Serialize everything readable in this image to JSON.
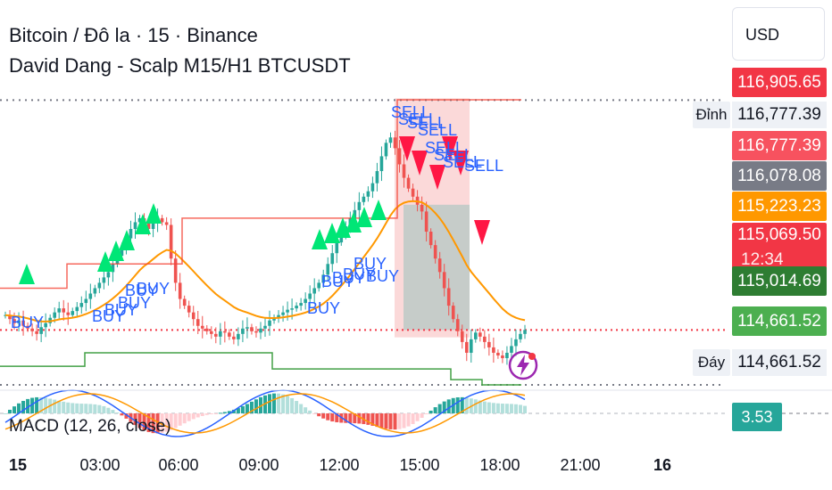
{
  "header": {
    "title": "Bitcoin / Đô la · 15 · Binance",
    "indicator": "David Dang - Scalp M15/H1 BTCUSDT"
  },
  "currency": "USD",
  "colors": {
    "up": "#26a69a",
    "down": "#ef5350",
    "ema": "#ff9800",
    "resistance": "#f44336",
    "support": "#43a047",
    "buy_marker": "#00e676",
    "sell_marker": "#ff1744",
    "signal_text": "#2962ff"
  },
  "price_scale": {
    "tags": [
      {
        "label": "",
        "value": "116,905.65",
        "color": "#f23645"
      },
      {
        "label": "Đỉnh",
        "value": "116,777.39",
        "color": ""
      },
      {
        "label": "",
        "value": "116,777.39",
        "color": "#f7525f"
      },
      {
        "label": "",
        "value": "116,078.08",
        "color": "#787b86"
      },
      {
        "label": "",
        "value": "115,223.23",
        "color": "#ff9800"
      },
      {
        "label": "",
        "value": "115,069.50",
        "sub": "12:34",
        "color": "#f23645"
      },
      {
        "label": "",
        "value": "115,014.69",
        "color": "#2e7d32"
      },
      {
        "label": "",
        "value": "114,661.52",
        "color": "#4caf50"
      },
      {
        "label": "Đáy",
        "value": "114,661.52",
        "color": ""
      }
    ]
  },
  "macd": {
    "label": "MACD (12, 26, close)",
    "value": "3.53"
  },
  "time_axis": [
    "15",
    "03:00",
    "06:00",
    "09:00",
    "12:00",
    "15:00",
    "18:00",
    "21:00",
    "16"
  ],
  "signals": {
    "buy": "BUY",
    "sell": "SELL"
  },
  "chart_data": {
    "type": "candlestick",
    "symbol": "Bitcoin / Đô la",
    "interval": "15",
    "exchange": "Binance",
    "x_ticks": [
      "15",
      "03:00",
      "06:00",
      "09:00",
      "12:00",
      "15:00",
      "18:00",
      "21:00",
      "16"
    ],
    "levels": {
      "high": 116777.39,
      "low": 114661.52,
      "last": 115069.5,
      "ema": 115223.23,
      "resistance": 116777.39,
      "support": 114661.52,
      "upper_band": 116905.65,
      "lower_band": 115014.69,
      "mid": 116078.08
    },
    "close_series": [
      115180,
      115150,
      115120,
      115140,
      115100,
      115080,
      115060,
      115040,
      115090,
      115120,
      115160,
      115200,
      115230,
      115200,
      115180,
      115210,
      115240,
      115270,
      115300,
      115340,
      115380,
      115420,
      115460,
      115500,
      115560,
      115620,
      115680,
      115750,
      115820,
      115870,
      115900,
      115860,
      115820,
      115870,
      115900,
      115870,
      115850,
      115600,
      115420,
      115300,
      115250,
      115200,
      115150,
      115100,
      115080,
      115060,
      115040,
      115020,
      115060,
      115050,
      115020,
      115000,
      115040,
      115080,
      115090,
      115060,
      115050,
      115080,
      115100,
      115140,
      115160,
      115180,
      115200,
      115220,
      115230,
      115250,
      115270,
      115300,
      115340,
      115380,
      115420,
      115480,
      115560,
      115640,
      115720,
      115780,
      115840,
      115900,
      115960,
      116020,
      116060,
      116100,
      116160,
      116250,
      116360,
      116460,
      116500,
      116420,
      116300,
      116200,
      116120,
      116060,
      116000,
      115950,
      115800,
      115700,
      115600,
      115500,
      115380,
      115250,
      115150,
      115060,
      114980,
      114900,
      115000,
      115050,
      115020,
      114980,
      114940,
      114900,
      114880,
      114860,
      114900,
      114950,
      115000,
      115040,
      115069.5
    ],
    "macd_value": 3.53,
    "signal_labels": [
      "BUY",
      "SELL"
    ]
  }
}
